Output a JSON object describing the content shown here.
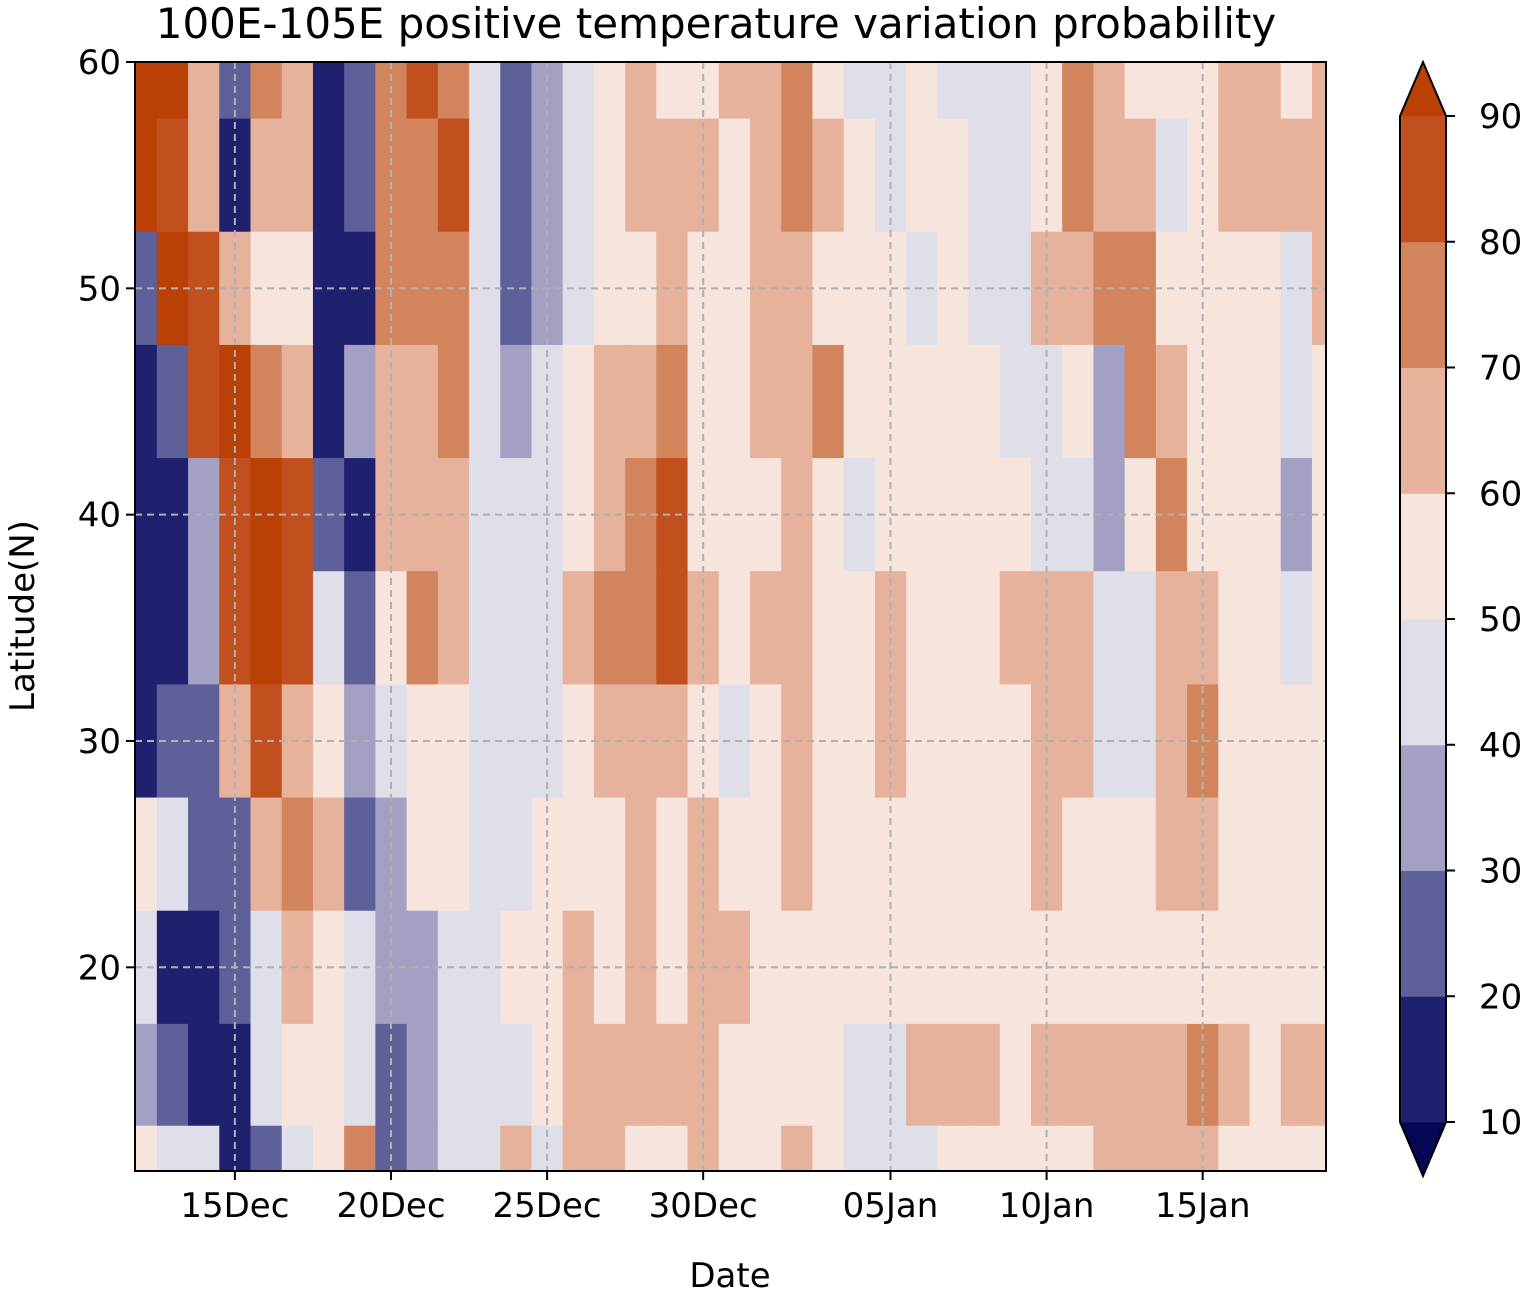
{
  "chart_data": {
    "type": "heatmap",
    "subtype": "filled-contour (latitude-time Hovmoller)",
    "title": "100E-105E positive temperature variation probability",
    "xlabel": "Date",
    "ylabel": "Latitude(N)",
    "x_tick_labels": [
      "15Dec",
      "20Dec",
      "25Dec",
      "30Dec",
      "05Jan",
      "10Jan",
      "15Jan"
    ],
    "y_ticks": [
      20,
      30,
      40,
      50,
      60
    ],
    "ylim": [
      11,
      60
    ],
    "grid": true,
    "colorbar": {
      "orientation": "vertical",
      "position": "right",
      "levels": [
        10,
        20,
        30,
        40,
        50,
        60,
        70,
        80,
        90
      ],
      "extend": "both",
      "colors": [
        "#050754",
        "#1f216f",
        "#5f5f99",
        "#a2a1c3",
        "#dfdfea",
        "#f6e4dd",
        "#e6b29b",
        "#d2845c",
        "#c2501f",
        "#bb4005"
      ]
    },
    "x_columns": [
      "12Dec",
      "13Dec",
      "14Dec",
      "15Dec",
      "16Dec",
      "17Dec",
      "18Dec",
      "19Dec",
      "20Dec",
      "21Dec",
      "22Dec",
      "23Dec",
      "24Dec",
      "25Dec",
      "26Dec",
      "27Dec",
      "28Dec",
      "29Dec",
      "30Dec",
      "31Dec",
      "01Jan",
      "02Jan",
      "03Jan",
      "04Jan",
      "05Jan",
      "06Jan",
      "07Jan",
      "08Jan",
      "09Jan",
      "10Jan",
      "11Jan",
      "12Jan",
      "13Jan",
      "14Jan",
      "15Jan",
      "16Jan",
      "17Jan",
      "18Jan",
      "19Jan"
    ],
    "latitudes": [
      60,
      55,
      50,
      45,
      40,
      35,
      30,
      25,
      20,
      15,
      11
    ],
    "values": [
      [
        95,
        90,
        60,
        20,
        70,
        65,
        10,
        25,
        75,
        80,
        75,
        45,
        25,
        30,
        45,
        55,
        60,
        55,
        55,
        60,
        65,
        75,
        55,
        45,
        40,
        50,
        45,
        40,
        40,
        55,
        75,
        65,
        55,
        50,
        55,
        60,
        65,
        55,
        60
      ],
      [
        95,
        88,
        65,
        15,
        60,
        60,
        10,
        20,
        70,
        78,
        80,
        45,
        25,
        35,
        45,
        55,
        65,
        60,
        60,
        55,
        60,
        78,
        60,
        50,
        45,
        50,
        50,
        45,
        40,
        55,
        70,
        65,
        60,
        45,
        55,
        60,
        60,
        60,
        60
      ],
      [
        25,
        90,
        80,
        65,
        55,
        55,
        10,
        15,
        70,
        72,
        75,
        45,
        25,
        30,
        45,
        55,
        55,
        65,
        55,
        55,
        60,
        65,
        55,
        55,
        50,
        45,
        55,
        45,
        40,
        60,
        60,
        70,
        70,
        55,
        50,
        50,
        50,
        45,
        60
      ],
      [
        12,
        25,
        88,
        90,
        75,
        60,
        15,
        35,
        65,
        68,
        70,
        45,
        35,
        40,
        50,
        60,
        65,
        70,
        55,
        50,
        60,
        60,
        70,
        55,
        55,
        50,
        55,
        50,
        45,
        45,
        55,
        30,
        70,
        60,
        50,
        50,
        50,
        45,
        55
      ],
      [
        10,
        15,
        30,
        85,
        92,
        80,
        25,
        10,
        60,
        65,
        60,
        45,
        40,
        45,
        50,
        65,
        70,
        80,
        55,
        50,
        55,
        60,
        55,
        45,
        55,
        50,
        55,
        50,
        55,
        45,
        40,
        30,
        55,
        75,
        55,
        50,
        50,
        35,
        55
      ],
      [
        10,
        15,
        35,
        85,
        90,
        85,
        40,
        25,
        55,
        70,
        60,
        40,
        40,
        45,
        60,
        70,
        75,
        80,
        60,
        50,
        60,
        65,
        55,
        50,
        65,
        50,
        55,
        50,
        60,
        65,
        60,
        45,
        45,
        65,
        60,
        55,
        50,
        45,
        55
      ],
      [
        12,
        25,
        20,
        65,
        80,
        65,
        55,
        30,
        45,
        55,
        50,
        45,
        40,
        45,
        50,
        60,
        65,
        65,
        55,
        45,
        55,
        60,
        50,
        55,
        60,
        55,
        55,
        50,
        55,
        65,
        65,
        40,
        45,
        60,
        70,
        55,
        55,
        50,
        55
      ],
      [
        55,
        45,
        20,
        25,
        65,
        70,
        60,
        20,
        35,
        50,
        50,
        45,
        45,
        50,
        55,
        55,
        60,
        55,
        60,
        55,
        55,
        60,
        55,
        55,
        55,
        55,
        55,
        55,
        50,
        65,
        55,
        55,
        55,
        60,
        65,
        55,
        55,
        50,
        55
      ],
      [
        40,
        12,
        10,
        25,
        45,
        60,
        50,
        40,
        30,
        35,
        40,
        45,
        55,
        55,
        60,
        55,
        60,
        55,
        65,
        60,
        55,
        55,
        55,
        55,
        50,
        55,
        55,
        55,
        50,
        55,
        55,
        55,
        55,
        55,
        55,
        55,
        50,
        55,
        55
      ],
      [
        35,
        20,
        10,
        10,
        40,
        50,
        55,
        45,
        25,
        30,
        40,
        40,
        45,
        55,
        60,
        60,
        60,
        65,
        60,
        55,
        55,
        55,
        50,
        45,
        45,
        60,
        60,
        60,
        55,
        60,
        65,
        65,
        60,
        60,
        70,
        60,
        55,
        60,
        60
      ],
      [
        55,
        45,
        40,
        15,
        20,
        40,
        55,
        70,
        25,
        30,
        45,
        45,
        60,
        45,
        60,
        60,
        55,
        55,
        60,
        50,
        55,
        60,
        55,
        45,
        40,
        45,
        55,
        50,
        55,
        50,
        55,
        60,
        60,
        65,
        60,
        55,
        55,
        55,
        50
      ]
    ]
  }
}
